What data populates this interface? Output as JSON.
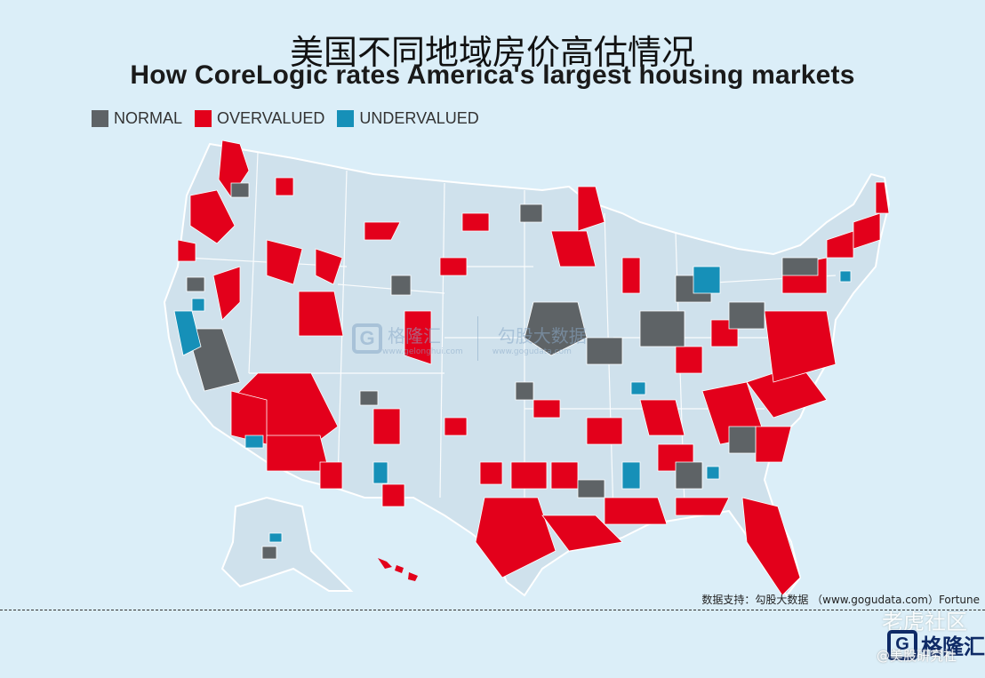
{
  "title_cn": "美国不同地域房价高估情况",
  "title_en": "How CoreLogic rates America's largest housing markets",
  "legend": [
    {
      "label": "NORMAL",
      "color": "#5e6366"
    },
    {
      "label": "OVERVALUED",
      "color": "#e3001b"
    },
    {
      "label": "UNDERVALUED",
      "color": "#1690b8"
    }
  ],
  "colors": {
    "background": "#dbeef8",
    "land": "#cfe1ec",
    "border": "#ffffff"
  },
  "source_text": "数据支持：勾股大数据 （www.gogudata.com）Fortune",
  "watermarks": {
    "center_logo": "格隆汇",
    "center_site": "www.gelonghui.com",
    "center_brand": "勾股大数据",
    "center_brand_site": "www.gogudata.com",
    "corner_community": "老虎社区",
    "corner_user": "@美股研究社",
    "corner_logo": "格隆汇",
    "logo_icon": "G"
  }
}
